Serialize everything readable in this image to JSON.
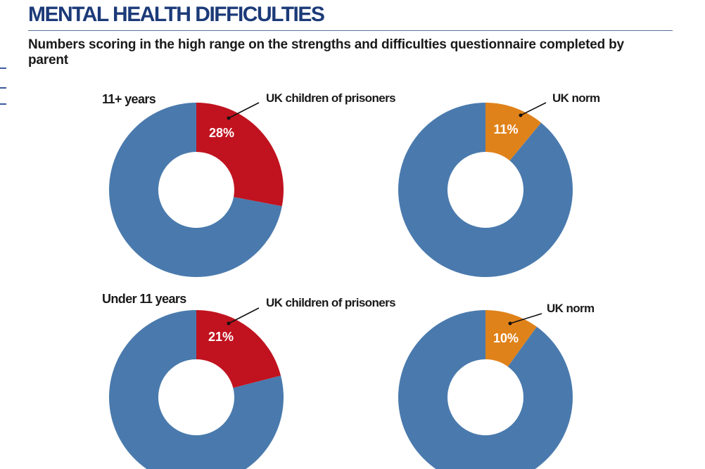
{
  "title": "MENTAL HEALTH DIFFICULTIES",
  "subtitle": "Numbers scoring in the high range on the strengths and difficulties questionnaire completed by parent",
  "colors": {
    "title": "#1c3a78",
    "remainder": "#4a7aad",
    "children_of_prisoners": "#c0131f",
    "uk_norm": "#e0821a"
  },
  "chart_data": [
    {
      "type": "pie",
      "group": "11+ years",
      "series": "UK children of prisoners",
      "value": 28,
      "label": "28%",
      "color": "#c0131f"
    },
    {
      "type": "pie",
      "group": "",
      "series": "UK norm",
      "value": 11,
      "label": "11%",
      "color": "#e0821a"
    },
    {
      "type": "pie",
      "group": "Under 11 years",
      "series": "UK children of prisoners",
      "value": 21,
      "label": "21%",
      "color": "#c0131f"
    },
    {
      "type": "pie",
      "group": "",
      "series": "UK norm",
      "value": 10,
      "label": "10%",
      "color": "#e0821a"
    }
  ]
}
